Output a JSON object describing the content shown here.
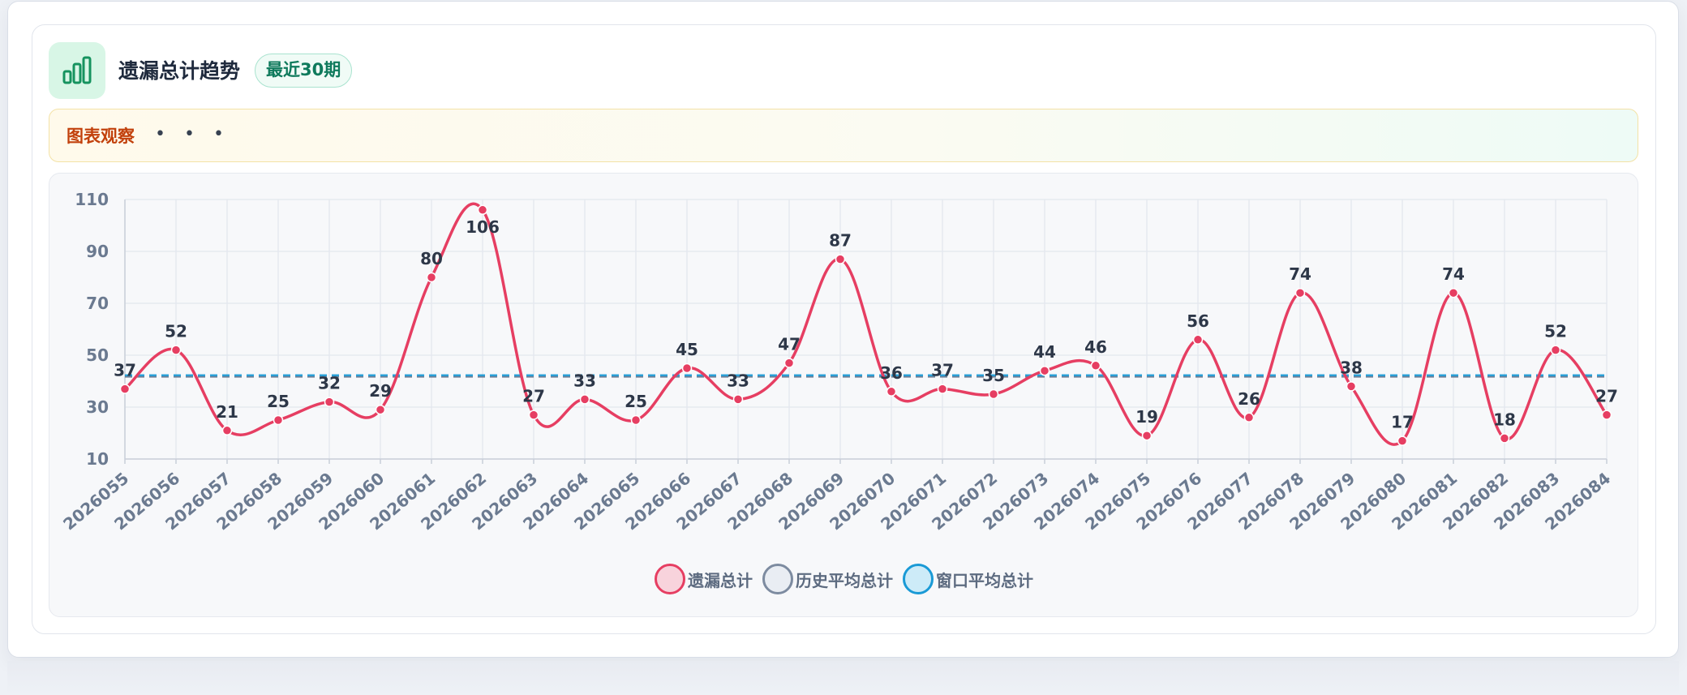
{
  "header": {
    "title": "遗漏总计趋势",
    "badge": "最近30期",
    "icon": "bar-chart-icon"
  },
  "observation": {
    "label": "图表观察",
    "more": "• • •"
  },
  "colors": {
    "series": "#e63e62",
    "history_avg": "#64748b",
    "window_avg": "#1a9ad6",
    "accent": "#0f7a5c"
  },
  "chart_data": {
    "type": "line",
    "categories": [
      "2026055",
      "2026056",
      "2026057",
      "2026058",
      "2026059",
      "2026060",
      "2026061",
      "2026062",
      "2026063",
      "2026064",
      "2026065",
      "2026066",
      "2026067",
      "2026068",
      "2026069",
      "2026070",
      "2026071",
      "2026072",
      "2026073",
      "2026074",
      "2026075",
      "2026076",
      "2026077",
      "2026078",
      "2026079",
      "2026080",
      "2026081",
      "2026082",
      "2026083",
      "2026084"
    ],
    "series": [
      {
        "name": "遗漏总计",
        "values": [
          37,
          52,
          21,
          25,
          32,
          29,
          80,
          106,
          27,
          33,
          25,
          45,
          33,
          47,
          87,
          36,
          37,
          35,
          44,
          46,
          19,
          56,
          26,
          74,
          38,
          17,
          74,
          18,
          52,
          27
        ],
        "smooth": true,
        "data_labels": true
      }
    ],
    "reference_lines": [
      {
        "name": "历史平均总计",
        "value": 42,
        "style": "dashed"
      },
      {
        "name": "窗口平均总计",
        "value": 42,
        "style": "dashed"
      }
    ],
    "y_ticks": [
      10,
      30,
      50,
      70,
      90,
      110
    ],
    "ylim": [
      10,
      110
    ],
    "grid": true,
    "legend": "bottom-center"
  }
}
